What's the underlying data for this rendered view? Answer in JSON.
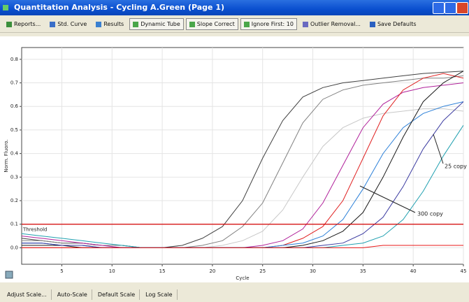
{
  "window": {
    "title": "Quantitation Analysis - Cycling A.Green (Page 1)"
  },
  "toolbar": [
    "Reports...",
    "Std. Curve",
    "Results",
    "Dynamic Tube",
    "Slope Correct",
    "Ignore First: 10",
    "Outlier Removal...",
    "Save Defaults"
  ],
  "bottom_buttons": [
    "Adjust Scale...",
    "Auto-Scale",
    "Default Scale",
    "Log Scale"
  ],
  "chart_data": {
    "type": "line",
    "x_label": "Cycle",
    "y_label": "Norm. Fluoro.",
    "xlim": [
      1,
      45
    ],
    "ylim": [
      -0.07,
      0.85
    ],
    "xticks": [
      5,
      10,
      15,
      20,
      25,
      30,
      35,
      40,
      45
    ],
    "yticks": [
      {
        "value": 0,
        "label": "0.0"
      },
      0.1,
      0.2,
      0.3,
      0.4,
      0.5,
      0.6,
      0.7,
      0.8
    ],
    "grid": true,
    "threshold": 0.1,
    "threshold_label": "Threshold",
    "threshold_color": "#d40000",
    "annotations": [
      "25 copy",
      "300 copy"
    ],
    "x": [
      1,
      3,
      5,
      7,
      9,
      11,
      13,
      15,
      17,
      19,
      21,
      23,
      25,
      27,
      29,
      31,
      33,
      35,
      37,
      39,
      41,
      43,
      45
    ],
    "series": [
      {
        "color": "#404040",
        "values": [
          0.04,
          0.03,
          0.02,
          0.02,
          0.01,
          0.01,
          0.0,
          0.0,
          0.01,
          0.04,
          0.09,
          0.2,
          0.38,
          0.54,
          0.64,
          0.68,
          0.7,
          0.71,
          0.72,
          0.73,
          0.74,
          0.745,
          0.75
        ]
      },
      {
        "color": "#808080",
        "values": [
          0.03,
          0.03,
          0.02,
          0.02,
          0.01,
          0.01,
          0.0,
          0.0,
          0.0,
          0.01,
          0.03,
          0.09,
          0.19,
          0.36,
          0.53,
          0.63,
          0.67,
          0.69,
          0.7,
          0.71,
          0.72,
          0.72,
          0.73
        ]
      },
      {
        "color": "#c8c8c8",
        "values": [
          0.02,
          0.02,
          0.01,
          0.01,
          0.01,
          0.0,
          0.0,
          0.0,
          0.0,
          0.0,
          0.01,
          0.03,
          0.07,
          0.16,
          0.3,
          0.43,
          0.51,
          0.55,
          0.57,
          0.58,
          0.59,
          0.59,
          0.58
        ]
      },
      {
        "color": "#b0209a",
        "values": [
          0.05,
          0.04,
          0.03,
          0.02,
          0.01,
          0.0,
          0.0,
          0.0,
          0.0,
          0.0,
          0.0,
          0.0,
          0.01,
          0.03,
          0.08,
          0.19,
          0.35,
          0.51,
          0.61,
          0.66,
          0.68,
          0.69,
          0.7
        ]
      },
      {
        "color": "#e02020",
        "values": [
          0.0,
          0.0,
          0.0,
          0.0,
          0.0,
          0.0,
          0.0,
          0.0,
          0.0,
          0.0,
          0.0,
          0.0,
          0.0,
          0.01,
          0.04,
          0.09,
          0.2,
          0.38,
          0.56,
          0.67,
          0.72,
          0.74,
          0.72
        ]
      },
      {
        "color": "#2a7fd8",
        "values": [
          0.02,
          0.02,
          0.01,
          0.01,
          0.0,
          0.0,
          0.0,
          0.0,
          0.0,
          0.0,
          0.0,
          0.0,
          0.0,
          0.01,
          0.02,
          0.05,
          0.12,
          0.25,
          0.4,
          0.51,
          0.57,
          0.6,
          0.62
        ]
      },
      {
        "color": "#1a1a1a",
        "values": [
          0.01,
          0.01,
          0.01,
          0.0,
          0.0,
          0.0,
          0.0,
          0.0,
          0.0,
          0.0,
          0.0,
          0.0,
          0.0,
          0.0,
          0.01,
          0.03,
          0.07,
          0.15,
          0.3,
          0.47,
          0.62,
          0.7,
          0.75
        ]
      },
      {
        "color": "#3a3aa0",
        "values": [
          0.02,
          0.02,
          0.01,
          0.01,
          0.0,
          0.0,
          0.0,
          0.0,
          0.0,
          0.0,
          0.0,
          0.0,
          0.0,
          0.0,
          0.0,
          0.01,
          0.02,
          0.06,
          0.13,
          0.26,
          0.42,
          0.54,
          0.62
        ]
      },
      {
        "color": "#20a0b0",
        "values": [
          0.06,
          0.05,
          0.04,
          0.03,
          0.02,
          0.01,
          0.0,
          0.0,
          0.0,
          0.0,
          0.0,
          0.0,
          0.0,
          0.0,
          0.0,
          0.0,
          0.01,
          0.02,
          0.05,
          0.12,
          0.24,
          0.39,
          0.52
        ]
      },
      {
        "color": "#e81818",
        "values": [
          0.0,
          0.0,
          0.0,
          0.0,
          0.0,
          0.0,
          0.0,
          0.0,
          0.0,
          0.0,
          0.0,
          0.0,
          0.0,
          0.0,
          0.0,
          0.0,
          0.0,
          0.0,
          0.01,
          0.01,
          0.01,
          0.01,
          0.01
        ]
      }
    ]
  }
}
